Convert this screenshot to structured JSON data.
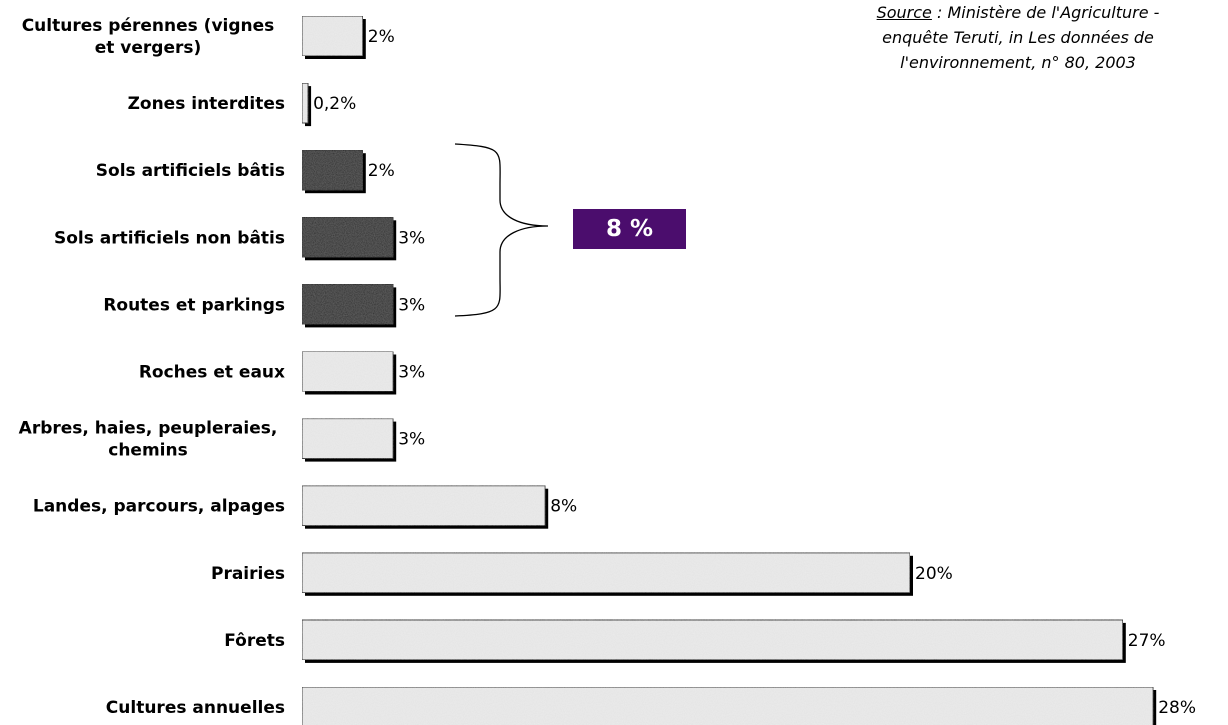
{
  "source": {
    "prefix": "Source",
    "line1": " : Ministère de l'Agriculture -",
    "line2": "enquête Teruti, in Les données de",
    "line3": "l'environnement, n° 80, 2003"
  },
  "group_total": "8 %",
  "colors": {
    "light_bar": "#ececec",
    "dark_bar": "#2b2b2b",
    "badge": "#4b0d6d"
  },
  "chart_data": {
    "type": "bar",
    "orientation": "horizontal",
    "categories": [
      [
        "Cultures pérennes (vignes",
        "et vergers)"
      ],
      [
        "Zones interdites"
      ],
      [
        "Sols artificiels bâtis"
      ],
      [
        "Sols artificiels non bâtis"
      ],
      [
        "Routes et parkings"
      ],
      [
        "Roches et eaux"
      ],
      [
        "Arbres, haies, peupleraies,",
        "chemins"
      ],
      [
        "Landes, parcours, alpages"
      ],
      [
        "Prairies"
      ],
      [
        "Fôrets"
      ],
      [
        "Cultures annuelles"
      ]
    ],
    "values": [
      2,
      0.2,
      2,
      3,
      3,
      3,
      3,
      8,
      20,
      27,
      28
    ],
    "value_labels": [
      "2%",
      "0,2%",
      "2%",
      "3%",
      "3%",
      "3%",
      "3%",
      "8%",
      "20%",
      "27%",
      "28%"
    ],
    "highlighted": [
      false,
      false,
      true,
      true,
      true,
      false,
      false,
      false,
      false,
      false,
      false
    ],
    "grouped_indices": [
      2,
      3,
      4
    ],
    "xlim": [
      0,
      30
    ],
    "grid": false
  }
}
